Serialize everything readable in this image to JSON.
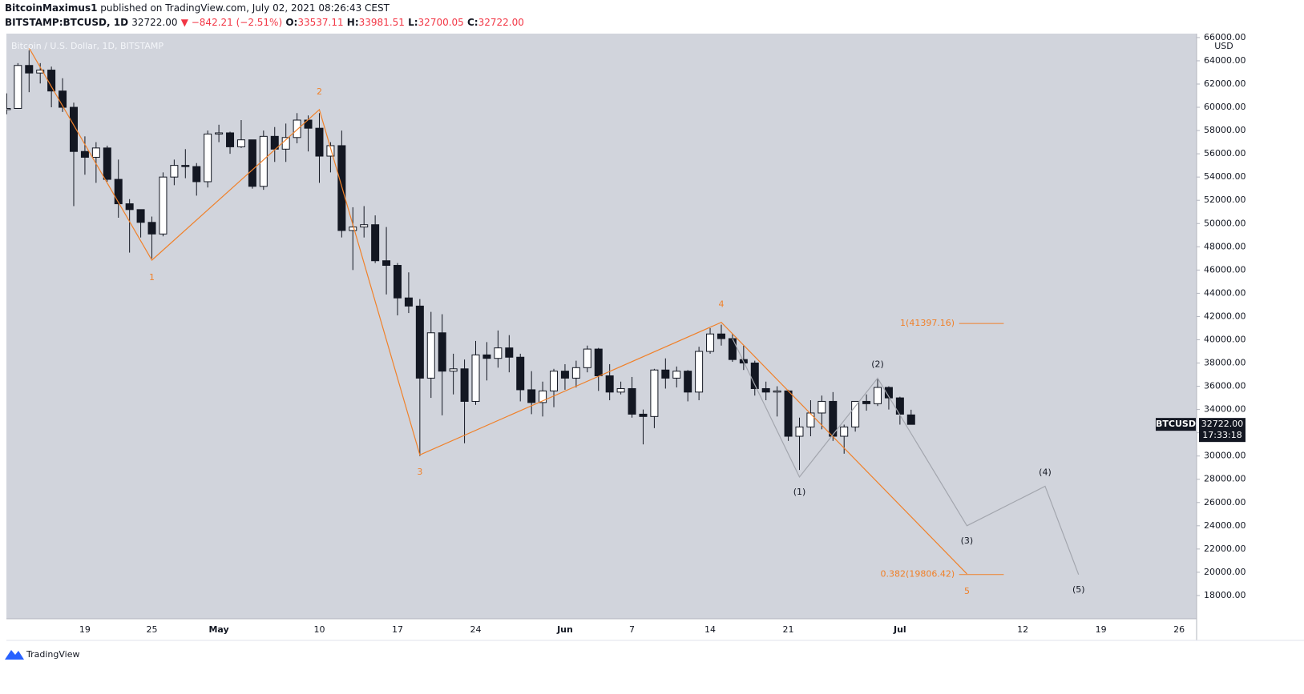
{
  "header": {
    "publisher": "BitcoinMaximus1",
    "published": "published on TradingView.com, July 02, 2021 08:26:43 CEST",
    "symbol": "BITSTAMP:BTCUSD, 1D",
    "last": "32722.00",
    "change": "▼ −842.21 (−2.51%)",
    "ohlc": [
      {
        "key": "O:",
        "value": "33537.11"
      },
      {
        "key": "H:",
        "value": "33981.51"
      },
      {
        "key": "L:",
        "value": "32700.05"
      },
      {
        "key": "C:",
        "value": "32722.00"
      }
    ]
  },
  "footer": {
    "brand": "TradingView"
  },
  "chart_data": {
    "type": "candlestick",
    "title": "Bitcoin / U.S. Dollar, 1D, BITSTAMP",
    "y_unit": "USD",
    "categories": [
      null,
      null,
      null,
      null,
      null,
      null,
      null,
      "19",
      null,
      null,
      null,
      null,
      null,
      "25",
      null,
      null,
      null,
      null,
      null,
      "May",
      null,
      null,
      null,
      null,
      null,
      null,
      null,
      null,
      "10",
      null,
      null,
      null,
      null,
      null,
      null,
      "17",
      null,
      null,
      null,
      null,
      null,
      null,
      "24",
      null,
      null,
      null,
      null,
      null,
      null,
      null,
      "Jun",
      null,
      null,
      null,
      null,
      null,
      "7",
      null,
      null,
      null,
      null,
      null,
      null,
      "14",
      null,
      null,
      null,
      null,
      null,
      null,
      "21",
      null,
      null,
      null,
      null,
      null,
      null,
      null,
      null,
      null,
      "Jul",
      null,
      null,
      null,
      null,
      null,
      null,
      null,
      null,
      null,
      null,
      "12",
      null,
      null,
      null,
      null,
      null,
      null,
      "19",
      null,
      null,
      null,
      null,
      null,
      null,
      "26",
      null
    ],
    "open": [
      59800,
      59900,
      63600,
      62950,
      63200,
      61400,
      60000,
      56200,
      55700,
      56500,
      53800,
      51700,
      51200,
      50100,
      49100,
      54000,
      55000,
      54900,
      53600,
      57700,
      57800,
      56600,
      57200,
      53200,
      57500,
      56400,
      57400,
      58900,
      58200,
      55800,
      56700,
      49400,
      49700,
      49900,
      46800,
      46400,
      43600,
      42900,
      36700,
      40600,
      37300,
      37500,
      34700,
      38700,
      38400,
      39300,
      38500,
      35700,
      34600,
      35600,
      37300,
      36700,
      37600,
      39200,
      36900,
      35500,
      35800,
      33600,
      33400,
      37400,
      36700,
      37300,
      35500,
      39000,
      40500,
      40100,
      38300,
      38000,
      35800,
      35500,
      35600,
      31700,
      32500,
      33700,
      34700,
      31700,
      32500,
      34700,
      34500,
      35900,
      35000,
      33537.11,
      null,
      null,
      null,
      null,
      null,
      null,
      null,
      null,
      null,
      null,
      null,
      null,
      null,
      null,
      null,
      null,
      null,
      null,
      null,
      null,
      null,
      null,
      null,
      null,
      null
    ],
    "high": [
      61200,
      63800,
      64900,
      63800,
      63500,
      62500,
      60400,
      57500,
      57000,
      56700,
      55500,
      52100,
      51200,
      50600,
      54400,
      55500,
      56400,
      55200,
      58000,
      58500,
      57900,
      58900,
      57200,
      58000,
      58300,
      58600,
      59500,
      59300,
      59500,
      57000,
      58000,
      51400,
      51500,
      50700,
      49700,
      46600,
      45800,
      43500,
      42400,
      42200,
      38800,
      38300,
      39900,
      39800,
      40800,
      40400,
      38800,
      37300,
      36400,
      37500,
      37900,
      38200,
      39500,
      39300,
      37900,
      36400,
      36800,
      34000,
      37500,
      38400,
      37700,
      37400,
      39400,
      41000,
      41300,
      40500,
      39500,
      38200,
      36400,
      36000,
      35700,
      33300,
      34800,
      35200,
      35500,
      32700,
      34700,
      35300,
      36600,
      36000,
      35100,
      33981.51,
      null,
      null,
      null,
      null,
      null,
      null,
      null,
      null,
      null,
      null,
      null,
      null,
      null,
      null,
      null,
      null,
      null,
      null,
      null,
      null,
      null,
      null,
      null,
      null,
      null
    ],
    "low": [
      59400,
      59900,
      61300,
      62050,
      60000,
      59600,
      51500,
      54200,
      53500,
      53600,
      50500,
      47500,
      48800,
      47000,
      48900,
      53300,
      53900,
      52400,
      53100,
      57000,
      56000,
      56500,
      53000,
      52900,
      55300,
      55300,
      56900,
      56200,
      53500,
      54400,
      48800,
      46000,
      48800,
      46600,
      43900,
      42100,
      42300,
      30000,
      35000,
      33500,
      35300,
      31100,
      34400,
      36500,
      37600,
      37200,
      34700,
      33600,
      33400,
      34200,
      35700,
      35900,
      37200,
      35600,
      34800,
      35300,
      33300,
      31000,
      32400,
      35800,
      35900,
      34700,
      34800,
      38800,
      39500,
      38100,
      37400,
      35200,
      34800,
      33400,
      31300,
      28800,
      31700,
      32300,
      31300,
      30200,
      32100,
      33900,
      34300,
      34000,
      32700,
      32700.05,
      null,
      null,
      null,
      null,
      null,
      null,
      null,
      null,
      null,
      null,
      null,
      null,
      null,
      null,
      null,
      null,
      null,
      null,
      null,
      null,
      null,
      null,
      null,
      null,
      null
    ],
    "close": [
      59900,
      63600,
      62950,
      63200,
      61400,
      60000,
      56200,
      55700,
      56500,
      53800,
      51700,
      51200,
      50100,
      49100,
      54000,
      55000,
      54900,
      53600,
      57700,
      57800,
      56600,
      57200,
      53200,
      57500,
      56400,
      57400,
      58900,
      58200,
      55800,
      56700,
      49400,
      49700,
      49900,
      46800,
      46400,
      43600,
      42900,
      36700,
      40600,
      37300,
      37500,
      34700,
      38700,
      38400,
      39300,
      38500,
      35700,
      34600,
      35600,
      37300,
      36700,
      37600,
      39200,
      36900,
      35500,
      35800,
      33600,
      33400,
      37400,
      36700,
      37300,
      35500,
      39000,
      40500,
      40100,
      38300,
      38000,
      35800,
      35500,
      35600,
      31700,
      32500,
      33700,
      34700,
      31700,
      32500,
      34700,
      34500,
      35900,
      35000,
      33600,
      32722,
      null,
      null,
      null,
      null,
      null,
      null,
      null,
      null,
      null,
      null,
      null,
      null,
      null,
      null,
      null,
      null,
      null,
      null,
      null,
      null,
      null,
      null,
      null,
      null,
      null
    ],
    "up_color": "#ffffff",
    "down_color": "#131722",
    "ylim": [
      16000,
      66200
    ],
    "yticks": [
      {
        "value": 18000,
        "label": "18000.00"
      },
      {
        "value": 20000,
        "label": "20000.00"
      },
      {
        "value": 22000,
        "label": "22000.00"
      },
      {
        "value": 24000,
        "label": "24000.00"
      },
      {
        "value": 26000,
        "label": "26000.00"
      },
      {
        "value": 28000,
        "label": "28000.00"
      },
      {
        "value": 30000,
        "label": "30000.00"
      },
      {
        "value": 32000,
        "label": "32000.00"
      },
      {
        "value": 34000,
        "label": "34000.00"
      },
      {
        "value": 36000,
        "label": "36000.00"
      },
      {
        "value": 38000,
        "label": "38000.00"
      },
      {
        "value": 40000,
        "label": "40000.00"
      },
      {
        "value": 42000,
        "label": "42000.00"
      },
      {
        "value": 44000,
        "label": "44000.00"
      },
      {
        "value": 46000,
        "label": "46000.00"
      },
      {
        "value": 48000,
        "label": "48000.00"
      },
      {
        "value": 50000,
        "label": "50000.00"
      },
      {
        "value": 52000,
        "label": "52000.00"
      },
      {
        "value": 54000,
        "label": "54000.00"
      },
      {
        "value": 56000,
        "label": "56000.00"
      },
      {
        "value": 58000,
        "label": "58000.00"
      },
      {
        "value": 60000,
        "label": "60000.00"
      },
      {
        "value": 62000,
        "label": "62000.00"
      },
      {
        "value": 64000,
        "label": "64000.00"
      },
      {
        "value": 66000,
        "label": "66000.00"
      }
    ],
    "waves": [
      {
        "color": "#f0812a",
        "x": [
          2,
          13,
          28,
          37,
          64,
          86
        ],
        "values": [
          65100,
          46850,
          59800,
          30100,
          41500,
          19860
        ],
        "labels": [
          null,
          "1",
          "2",
          "3",
          "4",
          "5"
        ]
      },
      {
        "color": "#a3a6ae",
        "x": [
          65,
          71,
          78,
          86,
          93,
          96
        ],
        "values": [
          40100,
          28200,
          36700,
          24000,
          27400,
          19800
        ],
        "labels": [
          null,
          "(1)",
          "(2)",
          "(3)",
          "(4)",
          "(5)"
        ]
      }
    ],
    "fib_levels": [
      {
        "value": 41397.16,
        "label": "1(41397.16)"
      },
      {
        "value": 19806.42,
        "label": "0.382(19806.42)"
      }
    ],
    "fib_color": "#f0812a",
    "price_tag": {
      "symbol": "BTCUSD",
      "value": 32722,
      "label": "32722.00",
      "countdown": "17:33:18"
    }
  }
}
